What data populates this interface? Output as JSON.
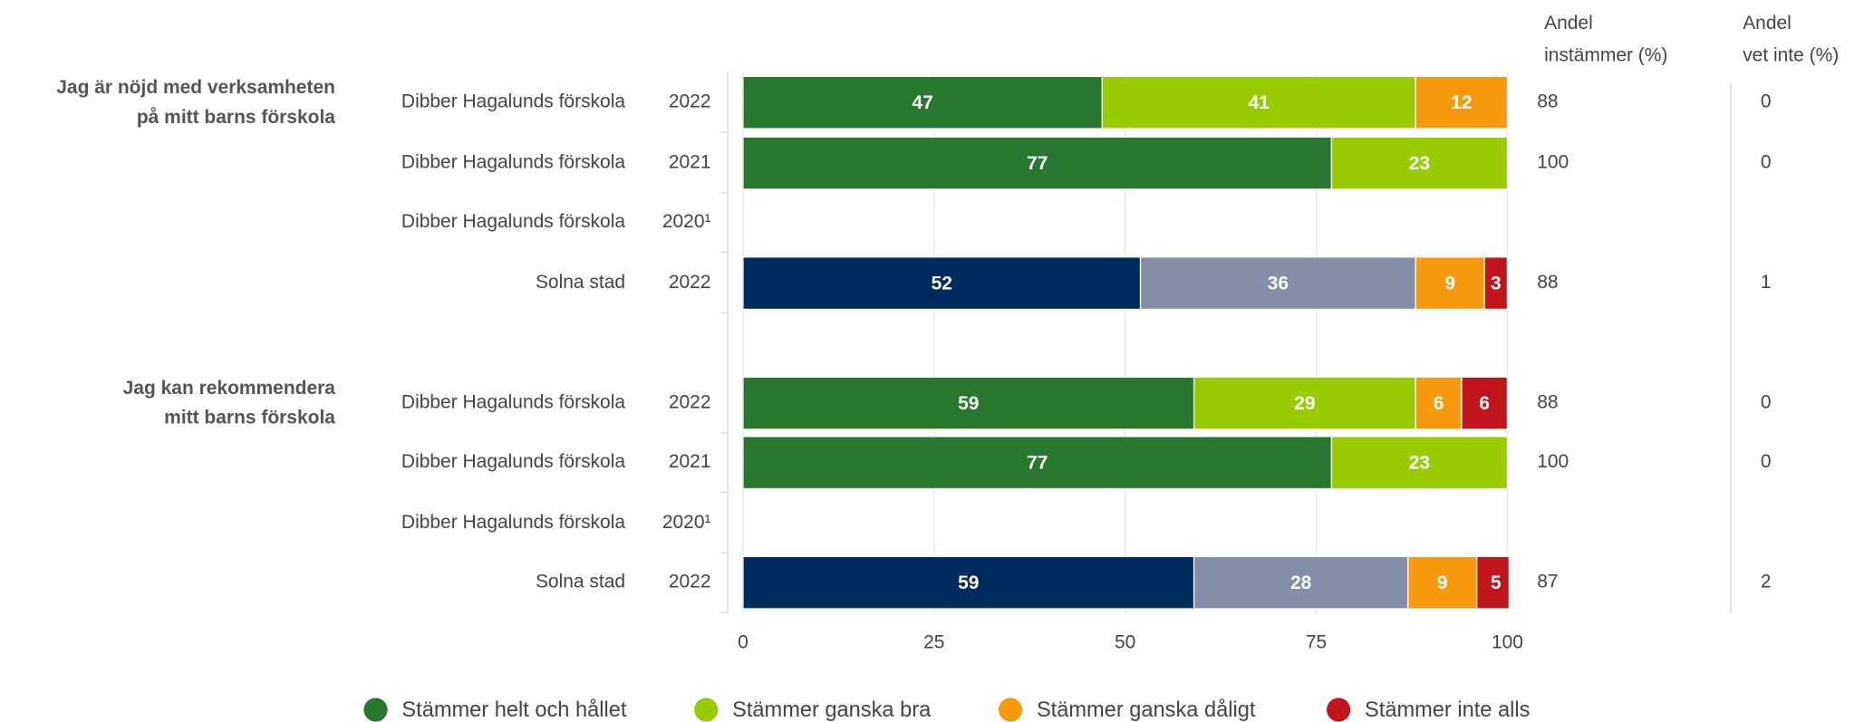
{
  "chart_data": {
    "type": "stacked_bar_h",
    "xlim": [
      0,
      100
    ],
    "xticks": [
      0,
      25,
      50,
      75,
      100
    ],
    "grid": true,
    "legend": "bottom",
    "columns": [
      [
        "Andel",
        "instämmer (%)"
      ],
      [
        "Andel",
        "vet inte (%)"
      ]
    ],
    "series": [
      {
        "name": "Stämmer helt och hållet",
        "color": "#29772f"
      },
      {
        "name": "Stämmer ganska bra",
        "color": "#99cc00"
      },
      {
        "name": "Stämmer ganska dåligt",
        "color": "#f7990c"
      },
      {
        "name": "Stämmer inte alls",
        "color": "#c0161b"
      }
    ],
    "comparison_colors": [
      "#002b5f",
      "#848ea8",
      "#f7990c",
      "#c0161b"
    ],
    "groups": [
      {
        "question": [
          "Jag är nöjd med verksamheten",
          "på mitt barns förskola"
        ],
        "rows": [
          {
            "label": "Dibber Hagalunds förskola",
            "year": "2022",
            "values": [
              47,
              41,
              12,
              0
            ],
            "agree": 88,
            "dont_know": 0
          },
          {
            "label": "Dibber Hagalunds förskola",
            "year": "2021",
            "values": [
              77,
              23,
              0,
              0
            ],
            "agree": 100,
            "dont_know": 0
          },
          {
            "label": "Dibber Hagalunds förskola",
            "year": "2020¹",
            "values": [
              null,
              null,
              null,
              null
            ],
            "agree": null,
            "dont_know": null
          },
          {
            "label": "Solna stad",
            "year": "2022",
            "comparison": true,
            "values": [
              52,
              36,
              9,
              3
            ],
            "agree": 88,
            "dont_know": 1
          }
        ]
      },
      {
        "question": [
          "Jag kan rekommendera",
          "mitt barns förskola"
        ],
        "rows": [
          {
            "label": "Dibber Hagalunds förskola",
            "year": "2022",
            "values": [
              59,
              29,
              6,
              6
            ],
            "agree": 88,
            "dont_know": 0
          },
          {
            "label": "Dibber Hagalunds förskola",
            "year": "2021",
            "values": [
              77,
              23,
              0,
              0
            ],
            "agree": 100,
            "dont_know": 0
          },
          {
            "label": "Dibber Hagalunds förskola",
            "year": "2020¹",
            "values": [
              null,
              null,
              null,
              null
            ],
            "agree": null,
            "dont_know": null
          },
          {
            "label": "Solna stad",
            "year": "2022",
            "comparison": true,
            "values": [
              59,
              28,
              9,
              5
            ],
            "agree": 87,
            "dont_know": 2
          }
        ]
      }
    ]
  }
}
